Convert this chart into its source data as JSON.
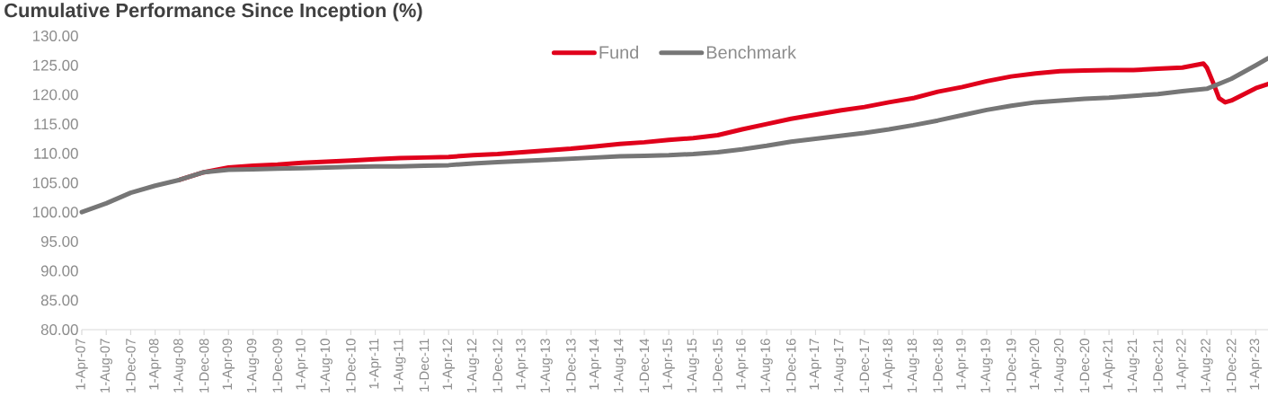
{
  "chart_data": {
    "type": "line",
    "title": "Cumulative Performance Since Inception (%)",
    "xlim": [
      "2007-04-01",
      "2023-06-01"
    ],
    "xticks": [
      {
        "value": "2007-04-01",
        "label": "1-Apr-07"
      },
      {
        "value": "2007-08-01",
        "label": "1-Aug-07"
      },
      {
        "value": "2007-12-01",
        "label": "1-Dec-07"
      },
      {
        "value": "2008-04-01",
        "label": "1-Apr-08"
      },
      {
        "value": "2008-08-01",
        "label": "1-Aug-08"
      },
      {
        "value": "2008-12-01",
        "label": "1-Dec-08"
      },
      {
        "value": "2009-04-01",
        "label": "1-Apr-09"
      },
      {
        "value": "2009-08-01",
        "label": "1-Aug-09"
      },
      {
        "value": "2009-12-01",
        "label": "1-Dec-09"
      },
      {
        "value": "2010-04-01",
        "label": "1-Apr-10"
      },
      {
        "value": "2010-08-01",
        "label": "1-Aug-10"
      },
      {
        "value": "2010-12-01",
        "label": "1-Dec-10"
      },
      {
        "value": "2011-04-01",
        "label": "1-Apr-11"
      },
      {
        "value": "2011-08-01",
        "label": "1-Aug-11"
      },
      {
        "value": "2011-12-01",
        "label": "1-Dec-11"
      },
      {
        "value": "2012-04-01",
        "label": "1-Apr-12"
      },
      {
        "value": "2012-08-01",
        "label": "1-Aug-12"
      },
      {
        "value": "2012-12-01",
        "label": "1-Dec-12"
      },
      {
        "value": "2013-04-01",
        "label": "1-Apr-13"
      },
      {
        "value": "2013-08-01",
        "label": "1-Aug-13"
      },
      {
        "value": "2013-12-01",
        "label": "1-Dec-13"
      },
      {
        "value": "2014-04-01",
        "label": "1-Apr-14"
      },
      {
        "value": "2014-08-01",
        "label": "1-Aug-14"
      },
      {
        "value": "2014-12-01",
        "label": "1-Dec-14"
      },
      {
        "value": "2015-04-01",
        "label": "1-Apr-15"
      },
      {
        "value": "2015-08-01",
        "label": "1-Aug-15"
      },
      {
        "value": "2015-12-01",
        "label": "1-Dec-15"
      },
      {
        "value": "2016-04-01",
        "label": "1-Apr-16"
      },
      {
        "value": "2016-08-01",
        "label": "1-Aug-16"
      },
      {
        "value": "2016-12-01",
        "label": "1-Dec-16"
      },
      {
        "value": "2017-04-01",
        "label": "1-Apr-17"
      },
      {
        "value": "2017-08-01",
        "label": "1-Aug-17"
      },
      {
        "value": "2017-12-01",
        "label": "1-Dec-17"
      },
      {
        "value": "2018-04-01",
        "label": "1-Apr-18"
      },
      {
        "value": "2018-08-01",
        "label": "1-Aug-18"
      },
      {
        "value": "2018-12-01",
        "label": "1-Dec-18"
      },
      {
        "value": "2019-04-01",
        "label": "1-Apr-19"
      },
      {
        "value": "2019-08-01",
        "label": "1-Aug-19"
      },
      {
        "value": "2019-12-01",
        "label": "1-Dec-19"
      },
      {
        "value": "2020-04-01",
        "label": "1-Apr-20"
      },
      {
        "value": "2020-08-01",
        "label": "1-Aug-20"
      },
      {
        "value": "2020-12-01",
        "label": "1-Dec-20"
      },
      {
        "value": "2021-04-01",
        "label": "1-Apr-21"
      },
      {
        "value": "2021-08-01",
        "label": "1-Aug-21"
      },
      {
        "value": "2021-12-01",
        "label": "1-Dec-21"
      },
      {
        "value": "2022-04-01",
        "label": "1-Apr-22"
      },
      {
        "value": "2022-08-01",
        "label": "1-Aug-22"
      },
      {
        "value": "2022-12-01",
        "label": "1-Dec-22"
      },
      {
        "value": "2023-04-01",
        "label": "1-Apr-23"
      }
    ],
    "ylim": [
      80,
      130
    ],
    "yticks": [
      {
        "value": 80,
        "label": "80.00"
      },
      {
        "value": 85,
        "label": "85.00"
      },
      {
        "value": 90,
        "label": "90.00"
      },
      {
        "value": 95,
        "label": "95.00"
      },
      {
        "value": 100,
        "label": "100.00"
      },
      {
        "value": 105,
        "label": "105.00"
      },
      {
        "value": 110,
        "label": "110.00"
      },
      {
        "value": 115,
        "label": "115.00"
      },
      {
        "value": 120,
        "label": "120.00"
      },
      {
        "value": 125,
        "label": "125.00"
      },
      {
        "value": 130,
        "label": "130.00"
      }
    ],
    "grid": false,
    "legend": "top",
    "marker": "none",
    "line_style": "solid",
    "series": [
      {
        "name": "Fund",
        "color": "#e0001b",
        "x": [
          "2008-08-01",
          "2008-12-01",
          "2009-04-01",
          "2009-08-01",
          "2009-12-01",
          "2010-04-01",
          "2010-08-01",
          "2010-12-01",
          "2011-04-01",
          "2011-08-01",
          "2011-12-01",
          "2012-04-01",
          "2012-08-01",
          "2012-12-01",
          "2013-04-01",
          "2013-08-01",
          "2013-12-01",
          "2014-04-01",
          "2014-08-01",
          "2014-12-01",
          "2015-04-01",
          "2015-08-01",
          "2015-12-01",
          "2016-04-01",
          "2016-08-01",
          "2016-12-01",
          "2017-04-01",
          "2017-08-01",
          "2017-12-01",
          "2018-04-01",
          "2018-08-01",
          "2018-12-01",
          "2019-04-01",
          "2019-08-01",
          "2019-12-01",
          "2020-04-01",
          "2020-08-01",
          "2020-12-01",
          "2021-04-01",
          "2021-08-01",
          "2021-12-01",
          "2022-04-01",
          "2022-07-15",
          "2022-08-01",
          "2022-09-01",
          "2022-10-01",
          "2022-11-01",
          "2022-12-01",
          "2023-04-01",
          "2023-06-01"
        ],
        "values": [
          105.5,
          106.8,
          107.6,
          107.9,
          108.1,
          108.4,
          108.6,
          108.8,
          109.0,
          109.2,
          109.3,
          109.4,
          109.7,
          109.9,
          110.2,
          110.5,
          110.8,
          111.2,
          111.6,
          111.9,
          112.3,
          112.6,
          113.1,
          114.1,
          115.0,
          115.9,
          116.6,
          117.3,
          117.9,
          118.7,
          119.4,
          120.5,
          121.3,
          122.3,
          123.1,
          123.6,
          124.0,
          124.1,
          124.2,
          124.2,
          124.4,
          124.6,
          125.3,
          124.6,
          122.1,
          119.4,
          118.7,
          119.0,
          121.1,
          121.8
        ]
      },
      {
        "name": "Benchmark",
        "color": "#767676",
        "x": [
          "2007-04-01",
          "2007-08-01",
          "2007-12-01",
          "2008-04-01",
          "2008-08-01",
          "2008-12-01",
          "2009-04-01",
          "2009-08-01",
          "2009-12-01",
          "2010-04-01",
          "2010-08-01",
          "2010-12-01",
          "2011-04-01",
          "2011-08-01",
          "2011-12-01",
          "2012-04-01",
          "2012-08-01",
          "2012-12-01",
          "2013-04-01",
          "2013-08-01",
          "2013-12-01",
          "2014-04-01",
          "2014-08-01",
          "2014-12-01",
          "2015-04-01",
          "2015-08-01",
          "2015-12-01",
          "2016-04-01",
          "2016-08-01",
          "2016-12-01",
          "2017-04-01",
          "2017-08-01",
          "2017-12-01",
          "2018-04-01",
          "2018-08-01",
          "2018-12-01",
          "2019-04-01",
          "2019-08-01",
          "2019-12-01",
          "2020-04-01",
          "2020-08-01",
          "2020-12-01",
          "2021-04-01",
          "2021-08-01",
          "2021-12-01",
          "2022-04-01",
          "2022-08-01",
          "2022-12-01",
          "2023-04-01",
          "2023-06-01"
        ],
        "values": [
          100,
          101.5,
          103.3,
          104.5,
          105.5,
          106.8,
          107.2,
          107.3,
          107.4,
          107.5,
          107.6,
          107.7,
          107.8,
          107.8,
          107.9,
          108.0,
          108.3,
          108.5,
          108.7,
          108.9,
          109.1,
          109.3,
          109.5,
          109.6,
          109.7,
          109.9,
          110.2,
          110.7,
          111.3,
          112.0,
          112.5,
          113.0,
          113.5,
          114.1,
          114.8,
          115.6,
          116.5,
          117.4,
          118.1,
          118.7,
          119.0,
          119.3,
          119.5,
          119.8,
          120.1,
          120.6,
          121.0,
          122.7,
          125.0,
          126.2
        ]
      }
    ]
  }
}
